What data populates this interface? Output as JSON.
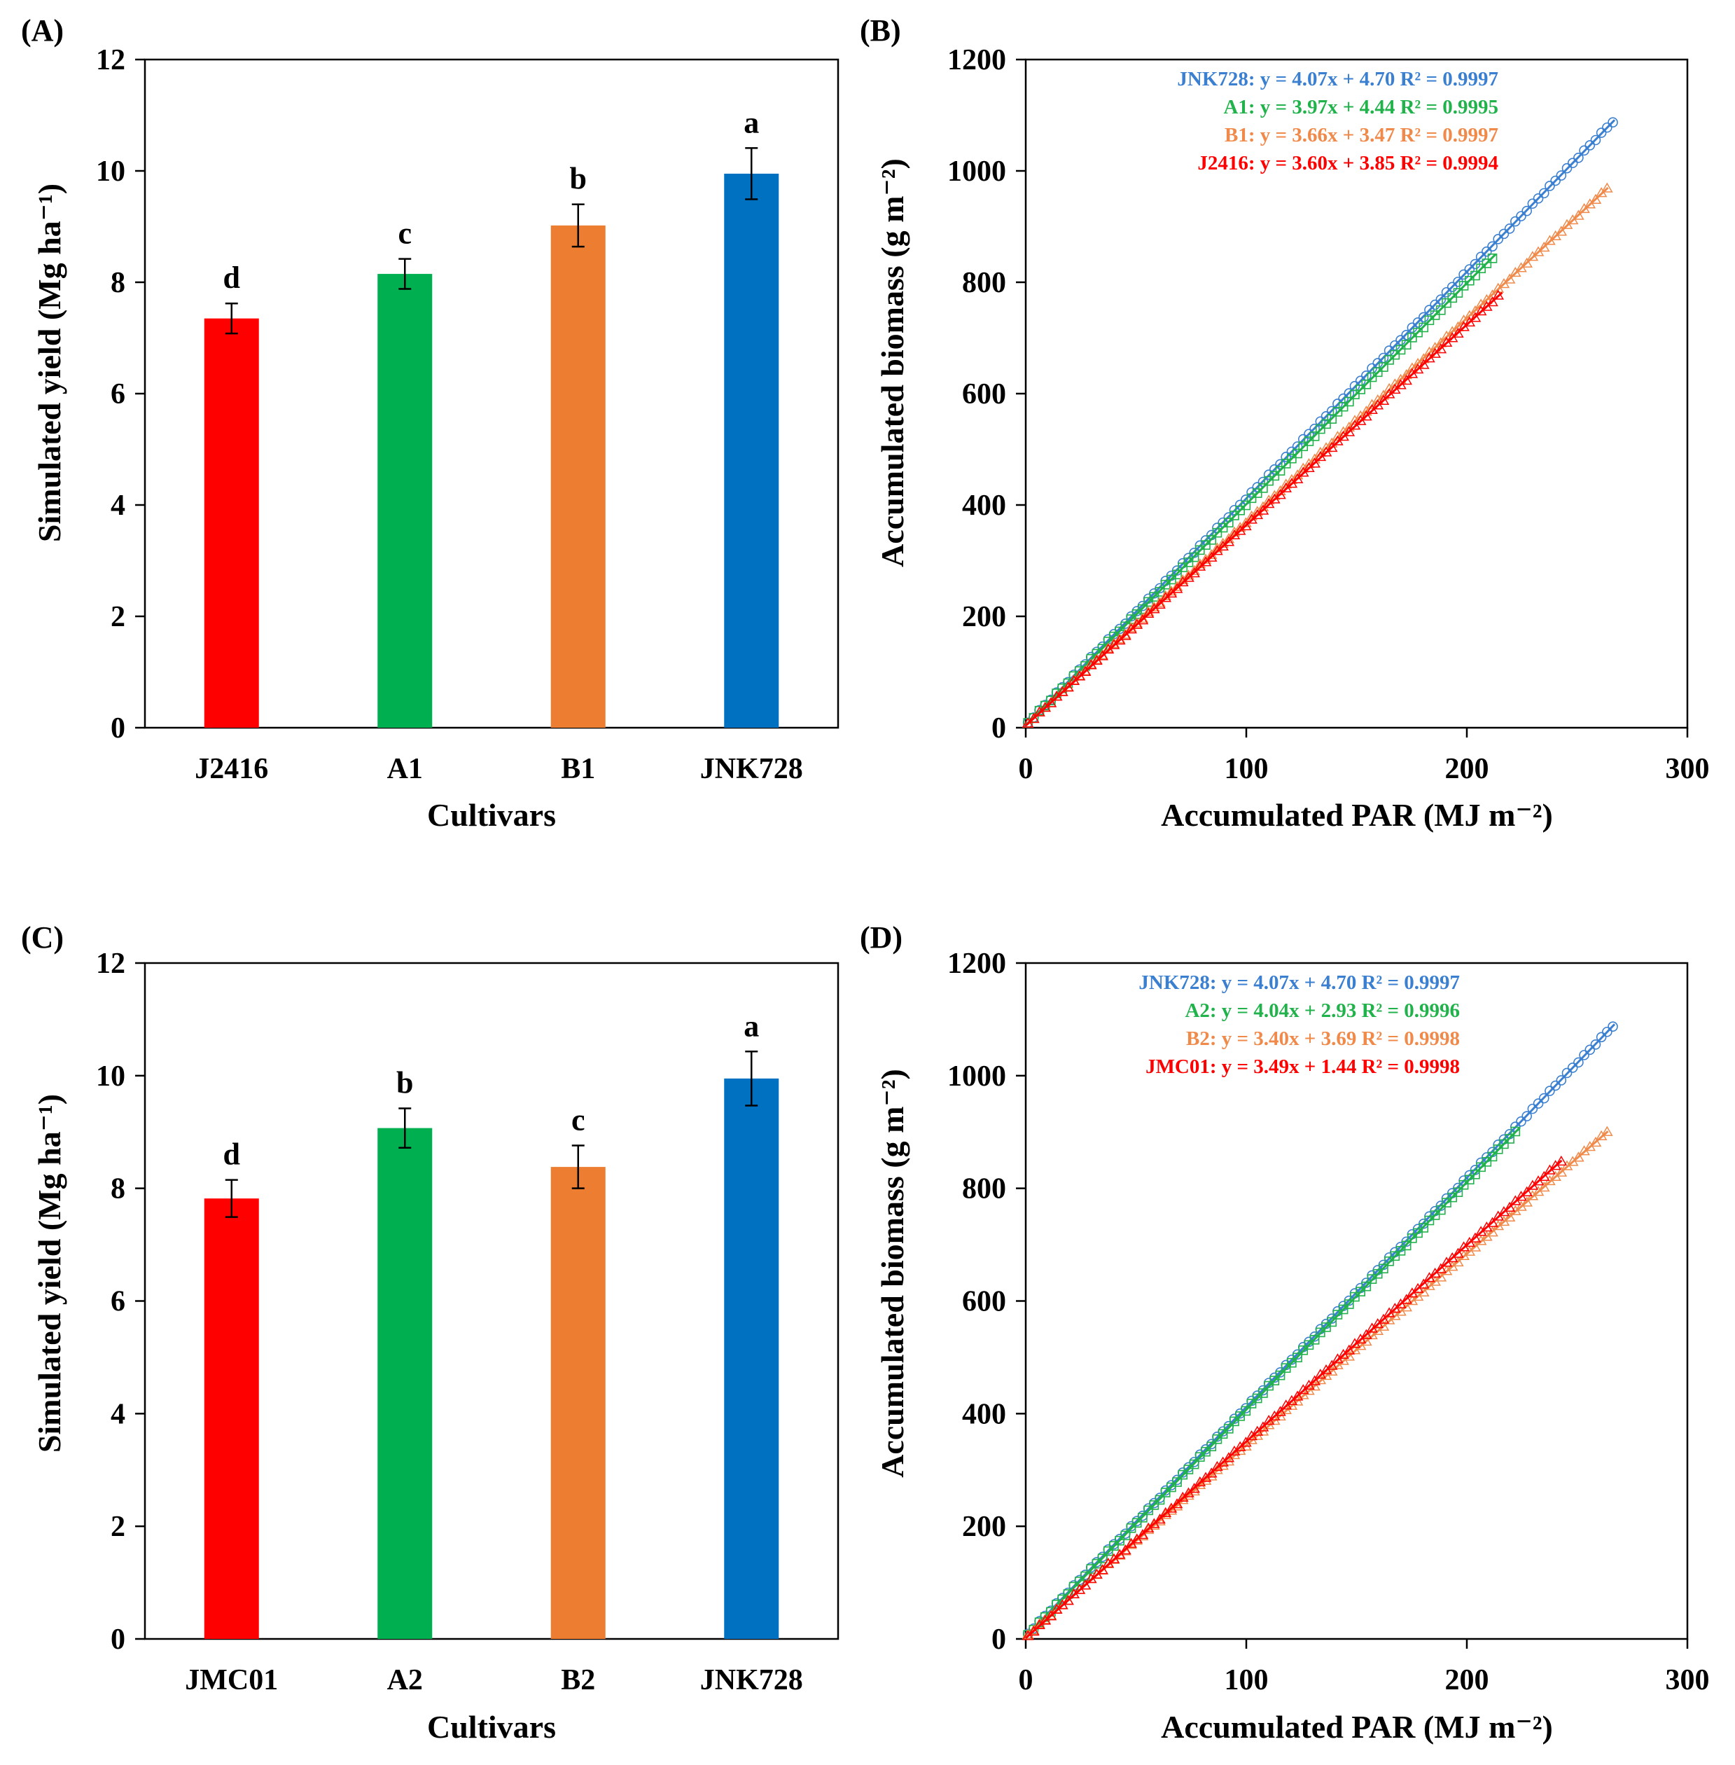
{
  "chart_data": [
    {
      "panel": "(A)",
      "type": "bar",
      "categories": [
        "J2416",
        "A1",
        "B1",
        "JNK728"
      ],
      "values": [
        7.35,
        8.15,
        9.02,
        9.95
      ],
      "errors": [
        0.27,
        0.27,
        0.38,
        0.46
      ],
      "significance": [
        "d",
        "c",
        "b",
        "a"
      ],
      "colors": [
        "#FF0000",
        "#00B050",
        "#ED7D31",
        "#0070C0"
      ],
      "xlabel": "Cultivars",
      "ylabel": "Simulated yield (Mg ha⁻¹)",
      "ylim": [
        0,
        12
      ],
      "yticks": [
        0,
        2,
        4,
        6,
        8,
        10,
        12
      ]
    },
    {
      "panel": "(B)",
      "type": "scatter",
      "xlabel": "Accumulated PAR (MJ m⁻²)",
      "ylabel": "Accumulated biomass (g m⁻²)",
      "xlim": [
        0,
        300
      ],
      "ylim": [
        0,
        1200
      ],
      "xticks": [
        0,
        100,
        200,
        300
      ],
      "yticks": [
        0,
        200,
        400,
        600,
        800,
        1000,
        1200
      ],
      "series": [
        {
          "name": "JNK728",
          "equation": "JNK728: y = 4.07x + 4.70 R² = 0.9997",
          "slope": 4.07,
          "intercept": 4.7,
          "x_range": [
            0,
            267
          ],
          "marker": "circle",
          "color": "#3A7FD0"
        },
        {
          "name": "A1",
          "equation": "A1: y = 3.97x + 4.44 R² = 0.9995",
          "slope": 3.97,
          "intercept": 4.44,
          "x_range": [
            0,
            213
          ],
          "marker": "square",
          "color": "#21B24B"
        },
        {
          "name": "B1",
          "equation": "B1: y = 3.66x + 3.47 R² = 0.9997",
          "slope": 3.66,
          "intercept": 3.47,
          "x_range": [
            0,
            264
          ],
          "marker": "triangle",
          "color": "#F08A4B"
        },
        {
          "name": "J2416",
          "equation": "J2416: y = 3.60x + 3.85 R² = 0.9994",
          "slope": 3.6,
          "intercept": 3.85,
          "x_range": [
            0,
            216
          ],
          "marker": "triangle",
          "color": "#FF0000"
        }
      ]
    },
    {
      "panel": "(C)",
      "type": "bar",
      "categories": [
        "JMC01",
        "A2",
        "B2",
        "JNK728"
      ],
      "values": [
        7.82,
        9.07,
        8.38,
        9.95
      ],
      "errors": [
        0.33,
        0.35,
        0.38,
        0.48
      ],
      "significance": [
        "d",
        "b",
        "c",
        "a"
      ],
      "colors": [
        "#FF0000",
        "#00B050",
        "#ED7D31",
        "#0070C0"
      ],
      "xlabel": "Cultivars",
      "ylabel": "Simulated yield (Mg ha⁻¹)",
      "ylim": [
        0,
        12
      ],
      "yticks": [
        0,
        2,
        4,
        6,
        8,
        10,
        12
      ]
    },
    {
      "panel": "(D)",
      "type": "scatter",
      "xlabel": "Accumulated PAR (MJ m⁻²)",
      "ylabel": "Accumulated biomass (g m⁻²)",
      "xlim": [
        0,
        300
      ],
      "ylim": [
        0,
        1200
      ],
      "xticks": [
        0,
        100,
        200,
        300
      ],
      "yticks": [
        0,
        200,
        400,
        600,
        800,
        1000,
        1200
      ],
      "series": [
        {
          "name": "JNK728",
          "equation": "JNK728: y = 4.07x + 4.70 R² = 0.9997",
          "slope": 4.07,
          "intercept": 4.7,
          "x_range": [
            0,
            267
          ],
          "marker": "circle",
          "color": "#3A7FD0"
        },
        {
          "name": "A2",
          "equation": "A2: y = 4.04x + 2.93 R² = 0.9996",
          "slope": 4.04,
          "intercept": 2.93,
          "x_range": [
            0,
            224
          ],
          "marker": "square",
          "color": "#21B24B"
        },
        {
          "name": "B2",
          "equation": "B2: y = 3.40x + 3.69 R² = 0.9998",
          "slope": 3.4,
          "intercept": 3.69,
          "x_range": [
            0,
            264
          ],
          "marker": "triangle",
          "color": "#F08A4B"
        },
        {
          "name": "JMC01",
          "equation": "JMC01: y = 3.49x + 1.44 R² = 0.9998",
          "slope": 3.49,
          "intercept": 1.44,
          "x_range": [
            0,
            243
          ],
          "marker": "triangle",
          "color": "#FF0000"
        }
      ]
    }
  ]
}
